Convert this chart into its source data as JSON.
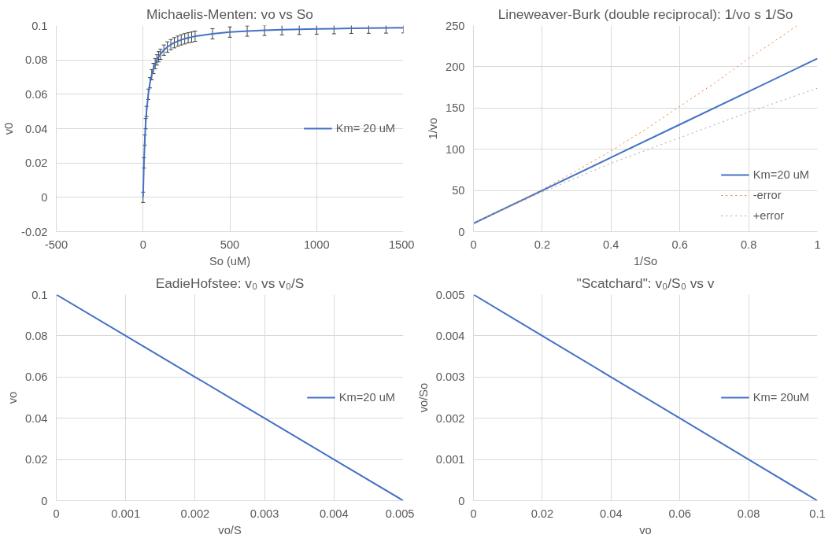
{
  "chart_data": [
    {
      "type": "line",
      "title": "Michaelis-Menten: vo vs So",
      "xlabel": "So (uM)",
      "ylabel": "v0",
      "xlim": [
        -500,
        1500
      ],
      "xticks": [
        -500,
        0,
        500,
        1000,
        1500
      ],
      "ylim": [
        -0.02,
        0.1
      ],
      "yticks": [
        -0.02,
        0,
        0.02,
        0.04,
        0.06,
        0.08,
        0.1
      ],
      "grid": true,
      "legend": "right",
      "x": [
        0,
        5,
        10,
        15,
        20,
        30,
        40,
        50,
        60,
        70,
        80,
        90,
        100,
        120,
        140,
        160,
        180,
        200,
        220,
        240,
        260,
        280,
        300,
        400,
        500,
        600,
        700,
        800,
        900,
        1000,
        1100,
        1200,
        1300,
        1400,
        1500
      ],
      "series": [
        {
          "name": "Km= 20 uM",
          "color": "#4472c4",
          "values": [
            0,
            0.02,
            0.0333,
            0.0429,
            0.05,
            0.06,
            0.0667,
            0.0714,
            0.075,
            0.0778,
            0.08,
            0.0818,
            0.0833,
            0.0857,
            0.0875,
            0.0889,
            0.09,
            0.0909,
            0.0917,
            0.0923,
            0.0929,
            0.0933,
            0.0938,
            0.0952,
            0.0962,
            0.0968,
            0.0972,
            0.0976,
            0.0978,
            0.098,
            0.0982,
            0.0984,
            0.0985,
            0.0986,
            0.0987
          ],
          "errors": [
            0.003,
            0.003,
            0.003,
            0.003,
            0.003,
            0.003,
            0.003,
            0.003,
            0.003,
            0.003,
            0.003,
            0.003,
            0.003,
            0.003,
            0.003,
            0.003,
            0.003,
            0.003,
            0.003,
            0.003,
            0.003,
            0.003,
            0.003,
            0.003,
            0.003,
            0.003,
            0.003,
            0.003,
            0.003,
            0.003,
            0.003,
            0.003,
            0.003,
            0.003,
            0.003
          ]
        }
      ]
    },
    {
      "type": "line",
      "title": "Lineweaver-Burk (double reciprocal): 1/vo s 1/So",
      "xlabel": "1/So",
      "ylabel": "1/vo",
      "xlim": [
        0,
        1
      ],
      "xticks": [
        0,
        0.2,
        0.4,
        0.6,
        0.8,
        1
      ],
      "ylim": [
        0,
        250
      ],
      "yticks": [
        0,
        50,
        100,
        150,
        200,
        250
      ],
      "grid": true,
      "legend": "bottom right",
      "series": [
        {
          "name": "Km=20 uM",
          "color": "#4472c4",
          "x": [
            0,
            0.2,
            0.4,
            0.6,
            0.8,
            1
          ],
          "values": [
            10,
            50,
            90,
            130,
            170,
            210
          ]
        },
        {
          "name": "-error",
          "color": "#ed7d31",
          "line_style": "dotted",
          "x": [
            0,
            0.1,
            0.2,
            0.3,
            0.4,
            0.5,
            0.6,
            0.7,
            0.8,
            0.9,
            0.94
          ],
          "values": [
            10,
            30,
            51,
            74,
            98,
            124,
            152,
            180,
            210,
            238,
            250
          ]
        },
        {
          "name": "+error",
          "color": "#a5a5a5",
          "line_style": "dotted",
          "x": [
            0,
            0.2,
            0.4,
            0.6,
            0.8,
            1
          ],
          "values": [
            10,
            48,
            83,
            114,
            145,
            174
          ]
        }
      ]
    },
    {
      "type": "line",
      "title": "EadieHofstee: v₀ vs v₀/S",
      "xlabel": "vo/S",
      "ylabel": "vo",
      "xlim": [
        0,
        0.005
      ],
      "xticks": [
        0,
        0.001,
        0.002,
        0.003,
        0.004,
        0.005
      ],
      "ylim": [
        0,
        0.1
      ],
      "yticks": [
        0,
        0.02,
        0.04,
        0.06,
        0.08,
        0.1
      ],
      "grid": true,
      "legend": "right",
      "series": [
        {
          "name": "Km=20 uM",
          "color": "#4472c4",
          "x": [
            0,
            0.001,
            0.002,
            0.003,
            0.004,
            0.005
          ],
          "values": [
            0.1,
            0.08,
            0.06,
            0.04,
            0.02,
            0
          ]
        }
      ]
    },
    {
      "type": "line",
      "title": "\"Scatchard\": v₀/S₀ vs v",
      "xlabel": "vo",
      "ylabel": "vo/So",
      "xlim": [
        0,
        0.1
      ],
      "xticks": [
        0,
        0.02,
        0.04,
        0.06,
        0.08,
        0.1
      ],
      "ylim": [
        0,
        0.005
      ],
      "yticks": [
        0,
        0.001,
        0.002,
        0.003,
        0.004,
        0.005
      ],
      "grid": true,
      "legend": "right",
      "series": [
        {
          "name": "Km= 20uM",
          "color": "#4472c4",
          "x": [
            0,
            0.02,
            0.04,
            0.06,
            0.08,
            0.1
          ],
          "values": [
            0.005,
            0.004,
            0.003,
            0.002,
            0.001,
            0
          ]
        }
      ]
    }
  ]
}
